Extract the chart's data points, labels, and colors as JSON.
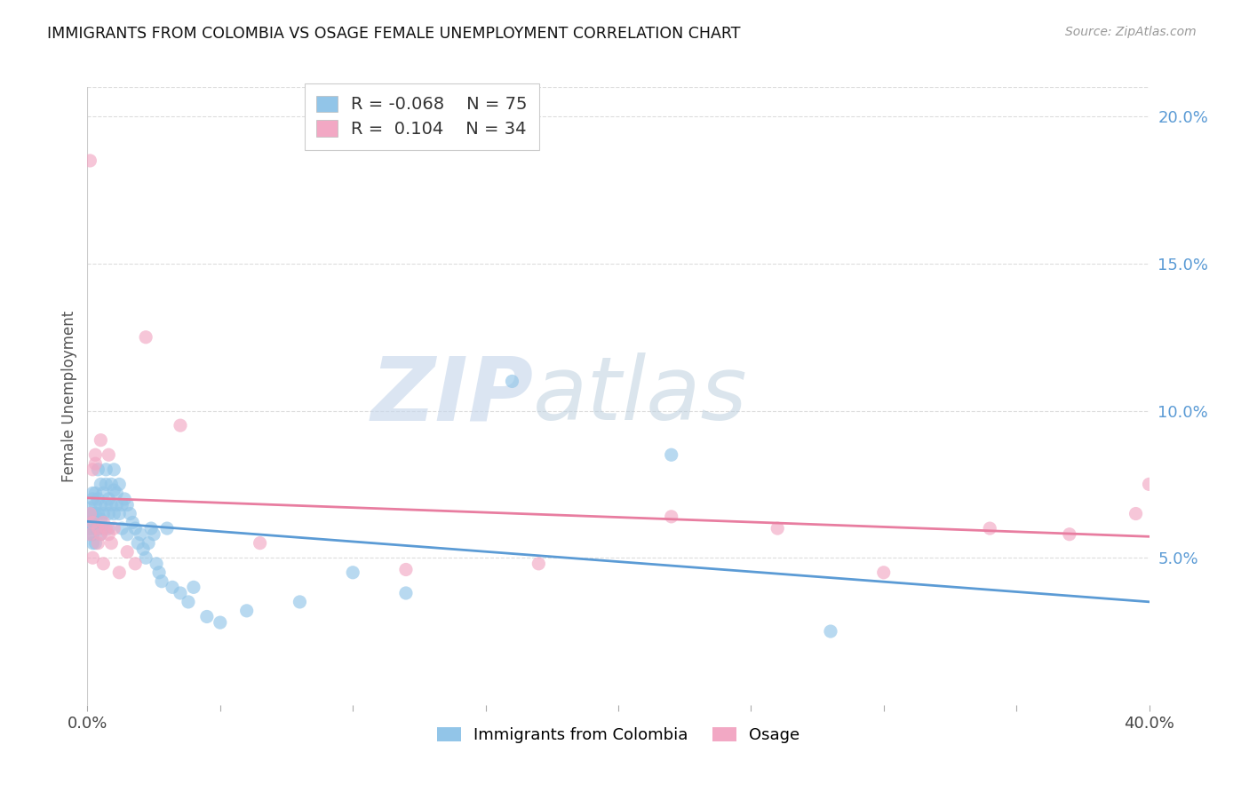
{
  "title": "IMMIGRANTS FROM COLOMBIA VS OSAGE FEMALE UNEMPLOYMENT CORRELATION CHART",
  "source": "Source: ZipAtlas.com",
  "ylabel": "Female Unemployment",
  "right_ytick_vals": [
    0.05,
    0.1,
    0.15,
    0.2
  ],
  "right_ytick_labels": [
    "5.0%",
    "10.0%",
    "15.0%",
    "20.0%"
  ],
  "legend1_label": "Immigrants from Colombia",
  "legend2_label": "Osage",
  "r1": -0.068,
  "n1": 75,
  "r2": 0.104,
  "n2": 34,
  "color_blue": "#92C5E8",
  "color_pink": "#F2A8C4",
  "color_blue_line": "#5B9BD5",
  "color_pink_line": "#E87DA0",
  "xmin": 0.0,
  "xmax": 0.4,
  "ymin": 0.0,
  "ymax": 0.21,
  "watermark_zip": "ZIP",
  "watermark_atlas": "atlas",
  "background_color": "#FFFFFF",
  "grid_color": "#DDDDDD",
  "colombia_x": [
    0.001,
    0.001,
    0.001,
    0.001,
    0.001,
    0.002,
    0.002,
    0.002,
    0.002,
    0.002,
    0.002,
    0.002,
    0.003,
    0.003,
    0.003,
    0.003,
    0.003,
    0.004,
    0.004,
    0.004,
    0.004,
    0.005,
    0.005,
    0.005,
    0.005,
    0.006,
    0.006,
    0.006,
    0.007,
    0.007,
    0.007,
    0.008,
    0.008,
    0.008,
    0.009,
    0.009,
    0.01,
    0.01,
    0.01,
    0.011,
    0.011,
    0.012,
    0.012,
    0.013,
    0.013,
    0.014,
    0.015,
    0.015,
    0.016,
    0.017,
    0.018,
    0.019,
    0.02,
    0.021,
    0.022,
    0.023,
    0.024,
    0.025,
    0.026,
    0.027,
    0.028,
    0.03,
    0.032,
    0.035,
    0.038,
    0.04,
    0.045,
    0.05,
    0.06,
    0.08,
    0.1,
    0.12,
    0.16,
    0.22,
    0.28
  ],
  "colombia_y": [
    0.065,
    0.067,
    0.062,
    0.058,
    0.06,
    0.07,
    0.065,
    0.062,
    0.058,
    0.072,
    0.063,
    0.055,
    0.068,
    0.065,
    0.06,
    0.055,
    0.072,
    0.07,
    0.065,
    0.06,
    0.08,
    0.075,
    0.068,
    0.063,
    0.058,
    0.072,
    0.065,
    0.06,
    0.08,
    0.075,
    0.068,
    0.07,
    0.065,
    0.06,
    0.075,
    0.068,
    0.08,
    0.073,
    0.065,
    0.072,
    0.068,
    0.075,
    0.065,
    0.068,
    0.06,
    0.07,
    0.068,
    0.058,
    0.065,
    0.062,
    0.06,
    0.055,
    0.058,
    0.053,
    0.05,
    0.055,
    0.06,
    0.058,
    0.048,
    0.045,
    0.042,
    0.06,
    0.04,
    0.038,
    0.035,
    0.04,
    0.03,
    0.028,
    0.032,
    0.035,
    0.045,
    0.038,
    0.11,
    0.085,
    0.025
  ],
  "osage_x": [
    0.001,
    0.001,
    0.001,
    0.002,
    0.002,
    0.002,
    0.003,
    0.003,
    0.004,
    0.004,
    0.005,
    0.005,
    0.006,
    0.006,
    0.007,
    0.008,
    0.008,
    0.009,
    0.01,
    0.012,
    0.015,
    0.018,
    0.022,
    0.035,
    0.065,
    0.12,
    0.17,
    0.22,
    0.26,
    0.3,
    0.34,
    0.37,
    0.395,
    0.4
  ],
  "osage_y": [
    0.185,
    0.065,
    0.058,
    0.08,
    0.062,
    0.05,
    0.082,
    0.085,
    0.06,
    0.055,
    0.09,
    0.058,
    0.062,
    0.048,
    0.06,
    0.058,
    0.085,
    0.055,
    0.06,
    0.045,
    0.052,
    0.048,
    0.125,
    0.095,
    0.055,
    0.046,
    0.048,
    0.064,
    0.06,
    0.045,
    0.06,
    0.058,
    0.065,
    0.075
  ]
}
